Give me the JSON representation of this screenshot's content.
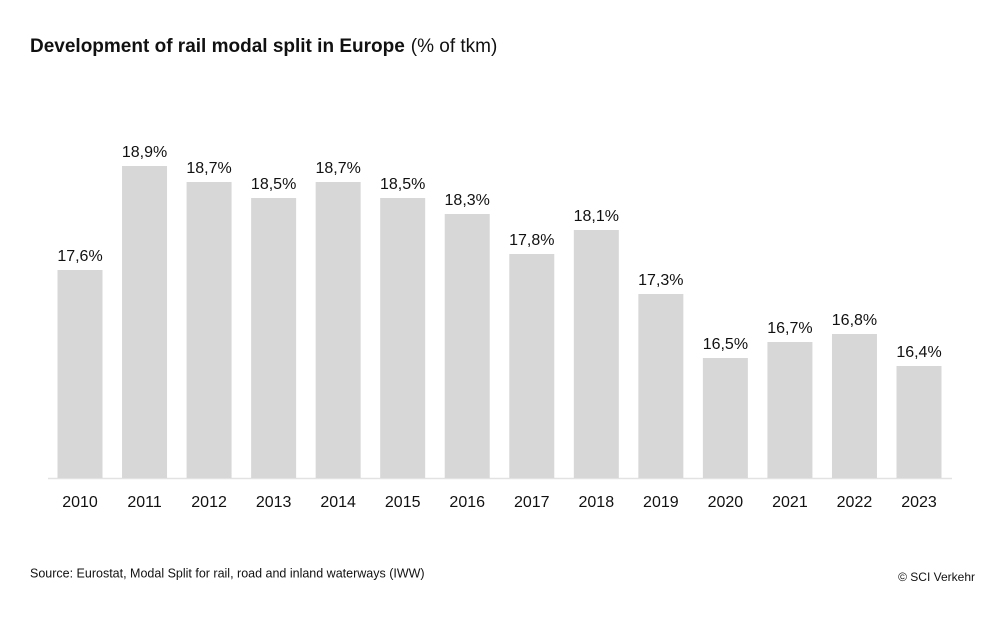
{
  "chart_data": {
    "type": "bar",
    "title": "Development of rail modal split in Europe",
    "title_unit": "(% of tkm)",
    "categories": [
      "2010",
      "2011",
      "2012",
      "2013",
      "2014",
      "2015",
      "2016",
      "2017",
      "2018",
      "2019",
      "2020",
      "2021",
      "2022",
      "2023"
    ],
    "values": [
      17.6,
      18.9,
      18.7,
      18.5,
      18.7,
      18.5,
      18.3,
      17.8,
      18.1,
      17.3,
      16.5,
      16.7,
      16.8,
      16.4
    ],
    "value_labels": [
      "17,6%",
      "18,9%",
      "18,7%",
      "18,5%",
      "18,7%",
      "18,5%",
      "18,3%",
      "17,8%",
      "18,1%",
      "17,3%",
      "16,5%",
      "16,7%",
      "16,8%",
      "16,4%"
    ],
    "color": "#d7d7d7",
    "ylim": [
      15,
      19.5
    ],
    "source": "Source: Eurostat, Modal Split for rail, road and inland waterways (IWW)",
    "credit": "© SCI Verkehr"
  }
}
